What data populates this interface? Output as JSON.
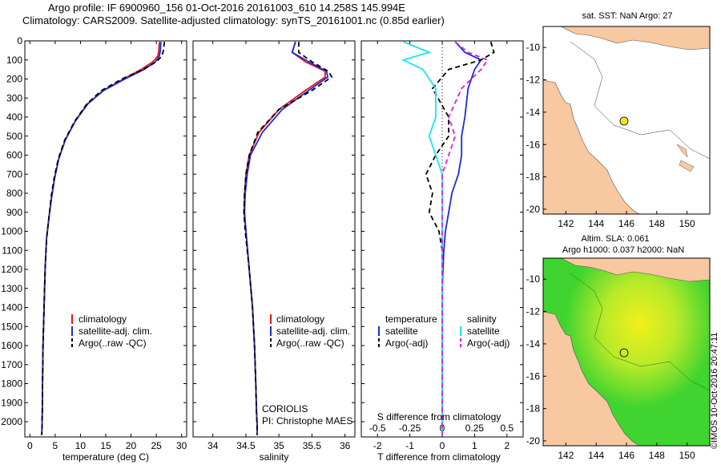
{
  "header": {
    "line1": "Argo profile: IF 6900960_156 01-Oct-2016 20161003_610 14.258S 145.994E",
    "line2": "Climatology: CARS2009. Satellite-adjusted climatology: synTS_20161001.nc (0.85d earlier)"
  },
  "colors": {
    "clim": "#e8141c",
    "sat": "#1a2bd6",
    "argo": "#000000",
    "sal_sat": "#19e4ee",
    "sal_argo": "#e21be4",
    "land": "#f8c8a0",
    "sst_marker": "#f2e41e"
  },
  "chart_data": [
    {
      "type": "line",
      "name": "temperature",
      "xlabel": "temperature (deg C)",
      "ylabel": "",
      "xlim": [
        -1,
        31
      ],
      "ylim": [
        2080,
        0
      ],
      "xticks": [
        0,
        5,
        10,
        15,
        20,
        25,
        30
      ],
      "yticks": [
        0,
        100,
        200,
        300,
        400,
        500,
        600,
        700,
        800,
        900,
        1000,
        1100,
        1200,
        1300,
        1400,
        1500,
        1600,
        1700,
        1800,
        1900,
        2000
      ],
      "legend": [
        "climatology",
        "satellite-adj. clim.",
        "Argo(..raw -QC)"
      ],
      "series": [
        {
          "name": "climatology",
          "color": "#e8141c",
          "dash": false,
          "x": [
            25.6,
            25.5,
            25.3,
            24.3,
            22.0,
            18.5,
            14.5,
            11.5,
            9.0,
            7.0,
            5.7,
            4.9,
            4.3,
            3.8,
            3.3,
            3.0,
            2.8,
            2.6,
            2.5,
            2.45,
            2.4,
            2.35
          ],
          "y": [
            5,
            50,
            80,
            110,
            150,
            200,
            260,
            330,
            420,
            520,
            620,
            720,
            820,
            920,
            1040,
            1200,
            1400,
            1600,
            1800,
            1950,
            2020,
            2070
          ]
        },
        {
          "name": "satellite-adj. clim.",
          "color": "#1a2bd6",
          "dash": false,
          "x": [
            25.9,
            25.8,
            25.6,
            24.8,
            22.6,
            18.8,
            14.6,
            11.4,
            9.0,
            7.0,
            5.7,
            4.9,
            4.3,
            3.8,
            3.3,
            3.0,
            2.8,
            2.6,
            2.5,
            2.45,
            2.4,
            2.35
          ],
          "y": [
            5,
            50,
            80,
            110,
            150,
            200,
            260,
            330,
            420,
            520,
            620,
            720,
            820,
            920,
            1040,
            1200,
            1400,
            1600,
            1800,
            1950,
            2020,
            2070
          ]
        },
        {
          "name": "Argo(..raw -QC)",
          "color": "#000000",
          "dash": true,
          "x": [
            26.6,
            26.4,
            26.1,
            25.0,
            22.4,
            18.2,
            14.2,
            11.3,
            8.9,
            6.9,
            5.6,
            4.8,
            4.2,
            3.8,
            3.3,
            3.0,
            2.8,
            2.6,
            2.5,
            2.45,
            2.4,
            2.35
          ],
          "y": [
            5,
            50,
            80,
            110,
            150,
            200,
            260,
            330,
            420,
            520,
            620,
            720,
            820,
            920,
            1040,
            1200,
            1400,
            1600,
            1800,
            1950,
            2020,
            2070
          ]
        }
      ]
    },
    {
      "type": "line",
      "name": "salinity",
      "xlabel": "salinity",
      "ylabel": "",
      "xlim": [
        33.7,
        36.15
      ],
      "ylim": [
        2080,
        0
      ],
      "xticks": [
        34,
        34.5,
        35,
        35.5,
        36
      ],
      "legend": [
        "climatology",
        "satellite-adj. clim.",
        "Argo(..raw -QC)"
      ],
      "annotation": [
        "CORIOLIS",
        "PI: Christophe MAES"
      ],
      "series": [
        {
          "name": "climatology",
          "color": "#e8141c",
          "dash": false,
          "x": [
            35.25,
            35.2,
            35.4,
            35.7,
            35.7,
            35.4,
            35.0,
            34.7,
            34.55,
            34.5,
            34.48,
            34.47,
            34.5,
            34.55,
            34.6,
            34.63,
            34.65,
            34.66,
            34.67,
            34.67
          ],
          "y": [
            5,
            60,
            110,
            160,
            190,
            260,
            360,
            480,
            600,
            700,
            800,
            900,
            1000,
            1200,
            1400,
            1600,
            1800,
            1950,
            2020,
            2070
          ]
        },
        {
          "name": "satellite-adj. clim.",
          "color": "#1a2bd6",
          "dash": false,
          "x": [
            35.25,
            35.2,
            35.45,
            35.72,
            35.74,
            35.45,
            35.05,
            34.75,
            34.57,
            34.52,
            34.49,
            34.48,
            34.5,
            34.55,
            34.6,
            34.63,
            34.65,
            34.66,
            34.67,
            34.67
          ],
          "y": [
            5,
            60,
            110,
            160,
            190,
            260,
            360,
            480,
            600,
            700,
            800,
            900,
            1000,
            1200,
            1400,
            1600,
            1800,
            1950,
            2020,
            2070
          ]
        },
        {
          "name": "Argo(..raw -QC)",
          "color": "#000000",
          "dash": true,
          "x": [
            35.3,
            35.3,
            35.5,
            35.75,
            35.8,
            35.5,
            35.0,
            34.68,
            34.55,
            34.5,
            34.48,
            34.47,
            34.49,
            34.55,
            34.6,
            34.63,
            34.65,
            34.66,
            34.67,
            34.67
          ],
          "y": [
            5,
            60,
            110,
            160,
            190,
            260,
            360,
            480,
            600,
            700,
            800,
            900,
            1000,
            1200,
            1400,
            1600,
            1800,
            1950,
            2020,
            2070
          ]
        }
      ]
    },
    {
      "type": "line",
      "name": "difference",
      "xlabel": "T difference from climatology",
      "xlabel2": "S difference from climatology",
      "xlim": [
        -2.5,
        2.5
      ],
      "ylim": [
        2080,
        0
      ],
      "xticks": [
        -2,
        -1,
        0,
        1,
        2
      ],
      "xticks_top": [
        -0.5,
        -0.25,
        0,
        0.25,
        0.5
      ],
      "legend_headers": [
        "temperature",
        "salinity"
      ],
      "legend": [
        "satellite",
        "Argo(-adj)",
        "satellite",
        "Argo(-adj)"
      ],
      "series": [
        {
          "name": "satellite",
          "color": "#1a2bd6",
          "dash": false,
          "x": [
            0.4,
            0.7,
            1.2,
            1.0,
            0.8,
            0.7,
            0.6,
            0.6,
            0.5,
            0.3,
            0.2,
            0.1,
            0.05,
            0.0,
            0.0,
            0.0,
            0.0,
            0.0
          ],
          "y": [
            5,
            60,
            100,
            150,
            250,
            400,
            500,
            600,
            700,
            800,
            900,
            1000,
            1100,
            1300,
            1500,
            1700,
            1900,
            2070
          ]
        },
        {
          "name": "Argo(-adj)",
          "color": "#000000",
          "dash": true,
          "x": [
            1.5,
            1.6,
            1.2,
            0.2,
            -0.3,
            0.2,
            0.2,
            -0.2,
            -0.5,
            -0.3,
            -0.4,
            -0.1,
            0.0,
            0.0,
            0.0,
            0.0,
            0.0,
            0.0
          ],
          "y": [
            5,
            60,
            100,
            150,
            250,
            400,
            500,
            600,
            700,
            800,
            900,
            1000,
            1100,
            1300,
            1500,
            1700,
            1900,
            2070
          ]
        },
        {
          "name": "satellite",
          "color": "#19e4ee",
          "dash": false,
          "x": [
            -0.3,
            -0.1,
            -0.3,
            -0.15,
            -0.05,
            -0.05,
            -0.1,
            -0.05,
            0.0,
            0.0,
            0.0,
            0.0,
            0.0,
            0.0,
            0.0,
            0.0,
            0.0,
            0.0
          ],
          "y": [
            5,
            60,
            100,
            150,
            250,
            400,
            500,
            600,
            700,
            800,
            900,
            1000,
            1100,
            1300,
            1500,
            1700,
            1900,
            2070
          ]
        },
        {
          "name": "Argo(-adj)",
          "color": "#e21be4",
          "dash": true,
          "x": [
            0.1,
            0.2,
            0.35,
            0.3,
            0.15,
            0.05,
            0.1,
            0.05,
            0.0,
            0.0,
            0.0,
            0.0,
            0.0,
            0.0,
            0.0,
            0.0,
            0.0,
            0.0
          ],
          "y": [
            5,
            60,
            100,
            150,
            250,
            400,
            500,
            600,
            700,
            800,
            900,
            1000,
            1100,
            1300,
            1500,
            1700,
            1900,
            2070
          ]
        }
      ]
    }
  ],
  "maps": {
    "top": {
      "title": "sat. SST: NaN Argo: 27",
      "xticks": [
        "142",
        "144",
        "146",
        "148",
        "150"
      ],
      "yticks": [
        "-10",
        "-12",
        "-14",
        "-16",
        "-18",
        "-20"
      ],
      "xlim": [
        140.5,
        151.5
      ],
      "ylim": [
        -20.3,
        -8.7
      ],
      "marker": {
        "lon": 146.0,
        "lat": -14.26
      }
    },
    "bottom": {
      "title1": "Altim. SLA: 0.061",
      "title2": "Argo h1000: 0.037 h2000: NaN",
      "xticks": [
        "142",
        "144",
        "146",
        "148",
        "150"
      ],
      "yticks": [
        "-10",
        "-12",
        "-14",
        "-16",
        "-18",
        "-20"
      ],
      "xlim": [
        140.5,
        151.5
      ],
      "ylim": [
        -20.3,
        -8.7
      ],
      "marker": {
        "lon": 146.0,
        "lat": -14.26
      }
    }
  },
  "stamp": "©IMOS 10-Oct-2016 20:47:11"
}
